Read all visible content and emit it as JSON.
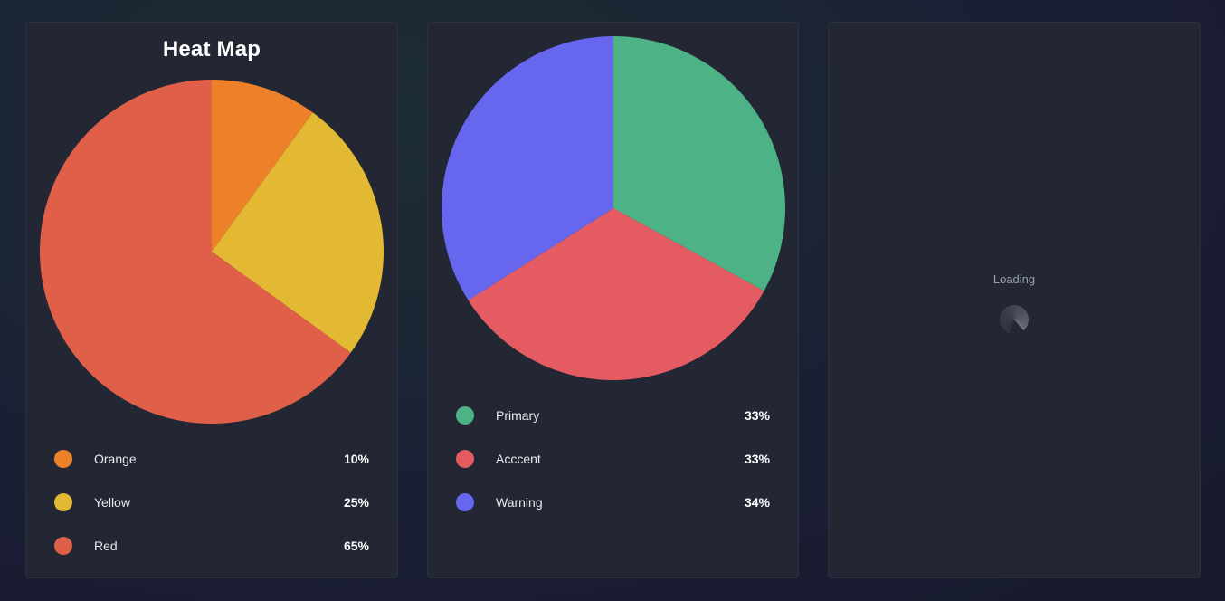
{
  "chart_data": [
    {
      "type": "pie",
      "title": "Heat Map",
      "slices": [
        {
          "label": "Orange",
          "value": 10,
          "display": "10%",
          "color": "#ed8129"
        },
        {
          "label": "Yellow",
          "value": 25,
          "display": "25%",
          "color": "#e3b832"
        },
        {
          "label": "Red",
          "value": 65,
          "display": "65%",
          "color": "#e05f49"
        }
      ]
    },
    {
      "type": "pie",
      "title": "",
      "slices": [
        {
          "label": "Primary",
          "value": 33,
          "display": "33%",
          "color": "#4db386"
        },
        {
          "label": "Acccent",
          "value": 33,
          "display": "33%",
          "color": "#e55b62"
        },
        {
          "label": "Warning",
          "value": 34,
          "display": "34%",
          "color": "#6667ee"
        }
      ]
    }
  ],
  "loading_panel": {
    "text": "Loading",
    "spinner_icon": "spinner-icon"
  }
}
